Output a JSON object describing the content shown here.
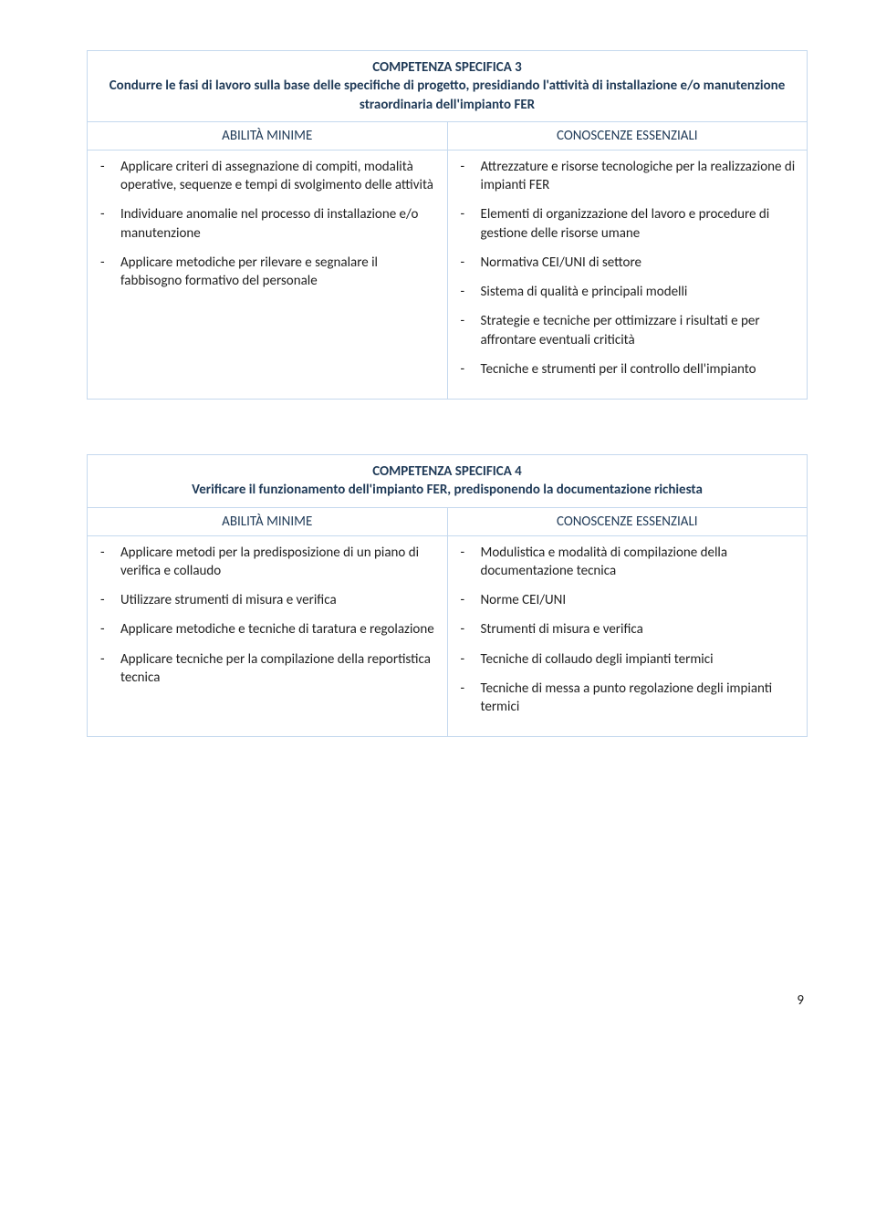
{
  "page_number": "9",
  "tables": [
    {
      "title_line1": "COMPETENZA SPECIFICA 3",
      "title_line2": "Condurre le fasi di lavoro sulla base delle specifiche di progetto, presidiando l'attività di installazione e/o manutenzione straordinaria dell'impianto FER",
      "left_heading": "ABILITÀ MINIME",
      "right_heading": "CONOSCENZE ESSENZIALI",
      "left_items": [
        "Applicare criteri di assegnazione di compiti, modalità operative, sequenze e tempi di svolgimento delle attività",
        "Individuare anomalie nel processo di installazione e/o manutenzione",
        "Applicare metodiche per rilevare e segnalare il fabbisogno formativo del personale"
      ],
      "right_items": [
        "Attrezzature e risorse tecnologiche per la realizzazione di impianti FER",
        "Elementi di organizzazione del lavoro e procedure di gestione delle risorse umane",
        "Normativa CEI/UNI di settore",
        "Sistema di qualità e principali modelli",
        "Strategie e tecniche per ottimizzare i risultati e per affrontare eventuali criticità",
        "Tecniche e strumenti per il controllo dell'impianto"
      ]
    },
    {
      "title_line1": "COMPETENZA SPECIFICA 4",
      "title_line2": "Verificare il funzionamento dell'impianto FER, predisponendo la documentazione richiesta",
      "left_heading": "ABILITÀ MINIME",
      "right_heading": "CONOSCENZE ESSENZIALI",
      "left_items": [
        "Applicare metodi per la predisposizione di un piano di verifica e collaudo",
        "Utilizzare strumenti di misura e verifica",
        "Applicare metodiche e tecniche di taratura e regolazione",
        "Applicare tecniche per la compilazione della reportistica tecnica"
      ],
      "right_items": [
        "Modulistica e modalità di compilazione della documentazione tecnica",
        "Norme CEI/UNI",
        "Strumenti di misura e verifica",
        "Tecniche di collaudo degli impianti termici",
        "Tecniche di messa a punto regolazione degli impianti termici"
      ]
    }
  ],
  "colors": {
    "border": "#c5d9ee",
    "heading_text": "#1f3a57",
    "body_text": "#1f1f1f",
    "background": "#ffffff"
  }
}
